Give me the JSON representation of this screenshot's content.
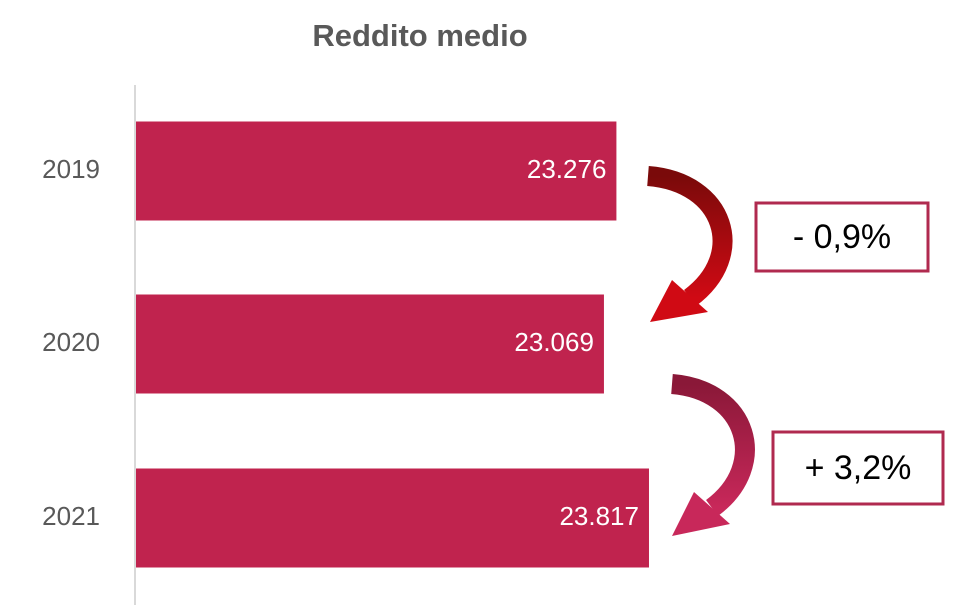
{
  "chart_data": {
    "type": "hbar",
    "title": "Reddito medio",
    "categories": [
      "2019",
      "2020",
      "2021"
    ],
    "values": [
      23276,
      23069,
      23817
    ],
    "value_labels": [
      "23.276",
      "23.069",
      "23.817"
    ],
    "color": "#c0234e",
    "xlim": [
      15280,
      24000
    ],
    "annotations": [
      "- 0,9%",
      "+ 3,2%"
    ]
  }
}
